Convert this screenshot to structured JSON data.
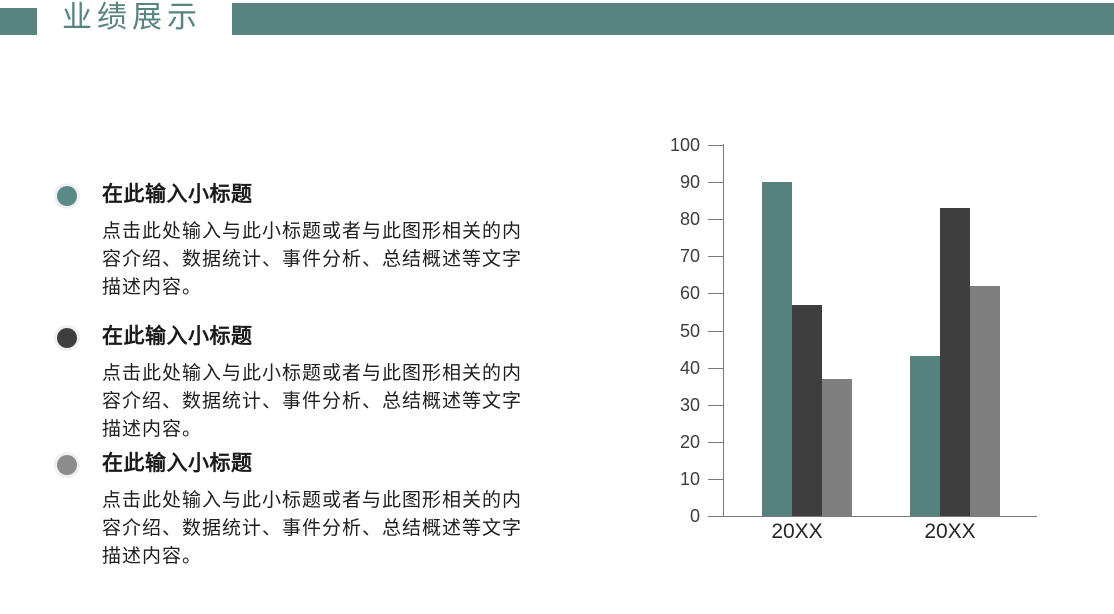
{
  "header": {
    "title": "业绩展示",
    "accent_color": "#578380"
  },
  "bullets": [
    {
      "title": "在此输入小标题",
      "marker_color": "#5b8a86",
      "body_lines": [
        "点击此处输入与此小标题或者与此图形相关的内",
        "容介绍、数据统计、事件分析、总结概述等文字",
        "描述内容。"
      ]
    },
    {
      "title": "在此输入小标题",
      "marker_color": "#3e3e3e",
      "body_lines": [
        "点击此处输入与此小标题或者与此图形相关的内",
        "容介绍、数据统计、事件分析、总结概述等文字",
        "描述内容。"
      ]
    },
    {
      "title": "在此输入小标题",
      "marker_color": "#8c8c8c",
      "body_lines": [
        "点击此处输入与此小标题或者与此图形相关的内",
        "容介绍、数据统计、事件分析、总结概述等文字",
        "描述内容。"
      ]
    }
  ],
  "chart_data": {
    "type": "bar",
    "title": "",
    "xlabel": "",
    "ylabel": "",
    "categories": [
      "20XX",
      "20XX"
    ],
    "series": [
      {
        "name": "teal",
        "color": "#55827f",
        "values": [
          90,
          43
        ]
      },
      {
        "name": "dark",
        "color": "#3e3e3e",
        "values": [
          57,
          83
        ]
      },
      {
        "name": "gray",
        "color": "#7f7f7f",
        "values": [
          37,
          62
        ]
      }
    ],
    "ylim": [
      0,
      100
    ],
    "ytick_step": 10,
    "ytick_labels": [
      "0",
      "10",
      "20",
      "30",
      "40",
      "50",
      "60",
      "70",
      "80",
      "90",
      "100"
    ],
    "axis_color": "#7a7a7a",
    "grid": false,
    "legend_position": "none"
  }
}
